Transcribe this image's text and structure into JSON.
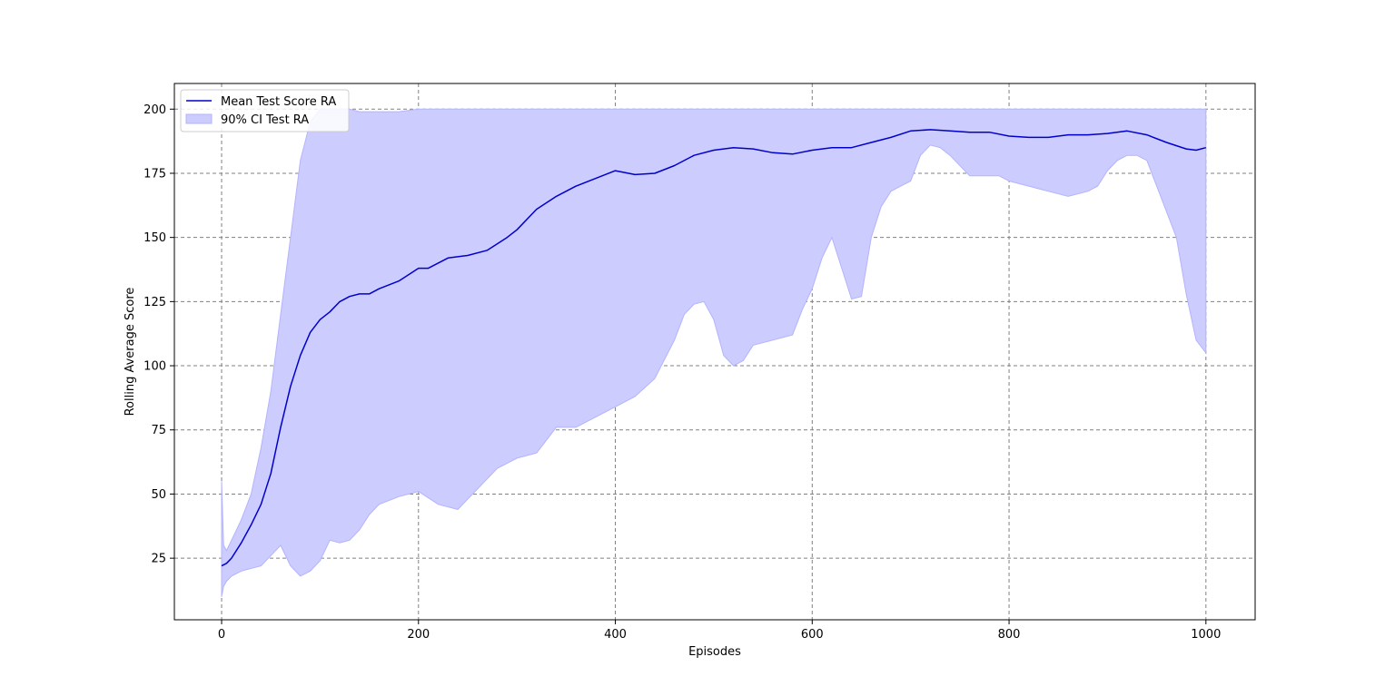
{
  "chart_data": {
    "type": "line",
    "xlabel": "Episodes",
    "ylabel": "Rolling Average Score",
    "xlim": [
      -48,
      1050
    ],
    "ylim": [
      1,
      210
    ],
    "xticks": [
      0,
      200,
      400,
      600,
      800,
      1000
    ],
    "yticks": [
      25,
      50,
      75,
      100,
      125,
      150,
      175,
      200
    ],
    "grid": true,
    "legend_placement": "upper-left",
    "colors": {
      "mean_line": "#0000cc",
      "ci_fill": "#ccccff",
      "ci_edge": "#b3b3ff"
    },
    "series": [
      {
        "name": "Mean Test Score RA",
        "kind": "line",
        "x": [
          0,
          5,
          10,
          20,
          30,
          40,
          50,
          60,
          70,
          80,
          90,
          100,
          110,
          120,
          130,
          140,
          150,
          160,
          180,
          200,
          210,
          230,
          250,
          270,
          290,
          300,
          320,
          340,
          360,
          380,
          400,
          420,
          440,
          460,
          480,
          500,
          520,
          540,
          560,
          580,
          600,
          620,
          640,
          660,
          680,
          700,
          720,
          740,
          760,
          780,
          800,
          820,
          840,
          860,
          880,
          900,
          920,
          940,
          960,
          980,
          990,
          1000
        ],
        "y": [
          22,
          23,
          25,
          31,
          38,
          46,
          58,
          76,
          92,
          104,
          113,
          118,
          121,
          125,
          127,
          128,
          128,
          130,
          133,
          138,
          138,
          142,
          143,
          145,
          150,
          153,
          161,
          166,
          170,
          173,
          176,
          174.5,
          175,
          178,
          182,
          184,
          185,
          184.5,
          183,
          182.5,
          184,
          185,
          185,
          187,
          189,
          191.5,
          192,
          191.5,
          191,
          191,
          189.5,
          189,
          189,
          190,
          190,
          190.5,
          191.5,
          190,
          187,
          184.5,
          184,
          185
        ]
      },
      {
        "name": "90% CI Test RA",
        "kind": "band",
        "x": [
          0,
          2,
          5,
          10,
          20,
          30,
          40,
          50,
          60,
          70,
          80,
          90,
          100,
          110,
          120,
          130,
          140,
          150,
          160,
          180,
          200,
          220,
          240,
          260,
          280,
          300,
          320,
          340,
          360,
          380,
          400,
          420,
          440,
          460,
          470,
          480,
          490,
          500,
          510,
          520,
          530,
          540,
          560,
          580,
          590,
          600,
          610,
          620,
          630,
          640,
          650,
          660,
          670,
          680,
          690,
          700,
          710,
          720,
          730,
          740,
          760,
          780,
          790,
          800,
          820,
          840,
          860,
          880,
          890,
          900,
          910,
          920,
          930,
          940,
          950,
          960,
          970,
          980,
          990,
          1000
        ],
        "upper": [
          55,
          30,
          28,
          32,
          40,
          50,
          68,
          90,
          120,
          150,
          180,
          195,
          200,
          200,
          200,
          200,
          199,
          199,
          199,
          199,
          200,
          200,
          200,
          200,
          200,
          200,
          200,
          200,
          200,
          200,
          200,
          200,
          200,
          200,
          200,
          200,
          200,
          200,
          200,
          200,
          200,
          200,
          200,
          200,
          200,
          200,
          200,
          200,
          200,
          200,
          200,
          200,
          200,
          200,
          200,
          200,
          200,
          200,
          200,
          200,
          200,
          200,
          200,
          200,
          200,
          200,
          200,
          200,
          200,
          200,
          200,
          200,
          200,
          200,
          200,
          200,
          200,
          200,
          200,
          200
        ],
        "lower": [
          10,
          14,
          16,
          18,
          20,
          21,
          22,
          26,
          30,
          22,
          18,
          20,
          24,
          32,
          31,
          32,
          36,
          42,
          46,
          49,
          51,
          46,
          44,
          52,
          60,
          64,
          66,
          76,
          76,
          80,
          84,
          88,
          95,
          110,
          120,
          124,
          125,
          118,
          104,
          100,
          102,
          108,
          110,
          112,
          122,
          130,
          142,
          150,
          138,
          126,
          127,
          150,
          162,
          168,
          170,
          172,
          182,
          186,
          185,
          182,
          174,
          174,
          174,
          172,
          170,
          168,
          166,
          168,
          170,
          176,
          180,
          182,
          182,
          180,
          170,
          160,
          150,
          128,
          110,
          105
        ]
      }
    ]
  }
}
